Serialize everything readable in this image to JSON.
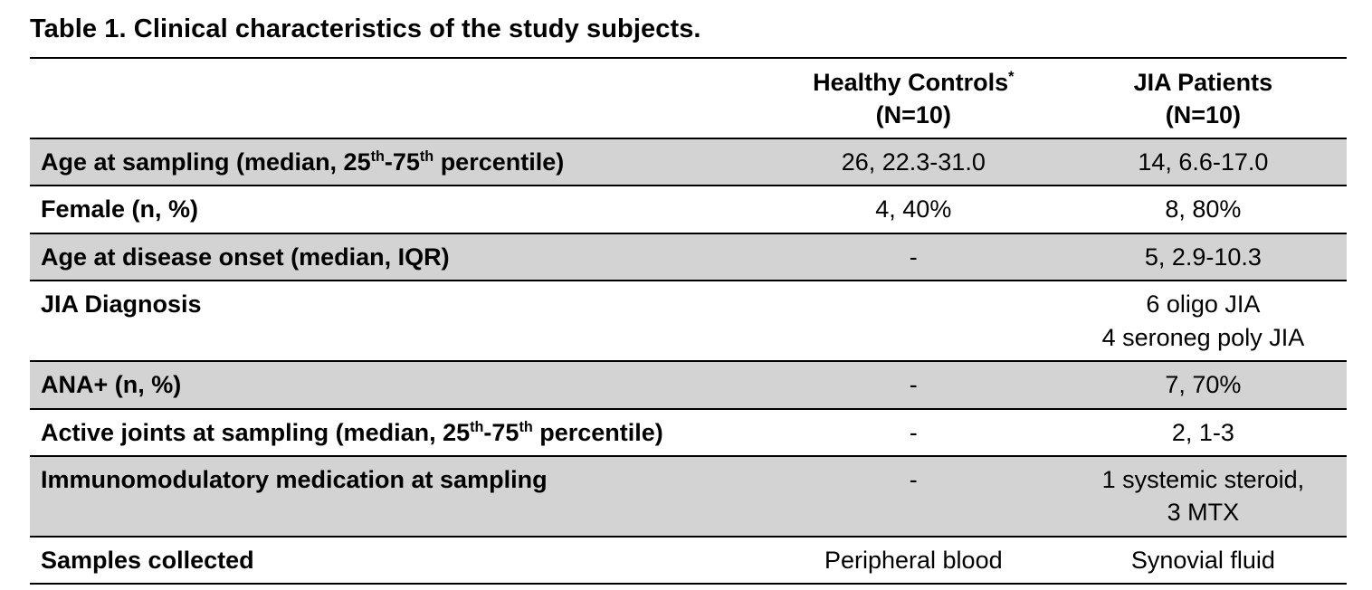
{
  "page_title": "Table 1. Clinical characteristics of the study subjects.",
  "colors": {
    "row_shade": "#d3d3d3",
    "border": "#000000",
    "page_background": "#ffffff"
  },
  "table": {
    "columns": [
      {
        "name": "healthy_controls",
        "label_parts": [
          {
            "t": "Healthy Controls"
          },
          {
            "sup": "*"
          }
        ],
        "count_label": "(N=10)"
      },
      {
        "name": "jia_patients",
        "label_parts": [
          {
            "t": "JIA Patients"
          }
        ],
        "count_label": "(N=10)"
      }
    ],
    "rows": [
      {
        "shaded": true,
        "label_parts": [
          {
            "t": "Age at sampling (median, 25"
          },
          {
            "sup": "th"
          },
          {
            "t": "-75"
          },
          {
            "sup": "th"
          },
          {
            "t": " percentile)"
          }
        ],
        "healthy": [
          "26, 22.3-31.0"
        ],
        "jia": [
          "14, 6.6-17.0"
        ]
      },
      {
        "shaded": false,
        "label_parts": [
          {
            "t": "Female (n, %)"
          }
        ],
        "healthy": [
          "4, 40%"
        ],
        "jia": [
          "8, 80%"
        ]
      },
      {
        "shaded": true,
        "label_parts": [
          {
            "t": "Age at disease onset (median, IQR)"
          }
        ],
        "healthy": [
          "-"
        ],
        "jia": [
          "5, 2.9-10.3"
        ]
      },
      {
        "shaded": false,
        "label_parts": [
          {
            "t": "JIA Diagnosis"
          }
        ],
        "healthy": [],
        "jia": [
          "6 oligo JIA",
          "4 seroneg poly JIA"
        ]
      },
      {
        "shaded": true,
        "label_parts": [
          {
            "t": "ANA+ (n, %)"
          }
        ],
        "healthy": [
          "-"
        ],
        "jia": [
          "7, 70%"
        ]
      },
      {
        "shaded": false,
        "label_parts": [
          {
            "t": "Active joints at sampling (median, 25"
          },
          {
            "sup": "th"
          },
          {
            "t": "-75"
          },
          {
            "sup": "th"
          },
          {
            "t": " percentile)"
          }
        ],
        "healthy": [
          "-"
        ],
        "jia": [
          "2, 1-3"
        ]
      },
      {
        "shaded": true,
        "label_parts": [
          {
            "t": "Immunomodulatory medication at sampling"
          }
        ],
        "healthy": [
          "-"
        ],
        "jia": [
          "1 systemic steroid,",
          "3 MTX"
        ]
      },
      {
        "shaded": false,
        "label_parts": [
          {
            "t": "Samples collected"
          }
        ],
        "healthy": [
          "Peripheral blood"
        ],
        "jia": [
          "Synovial fluid"
        ]
      }
    ]
  }
}
